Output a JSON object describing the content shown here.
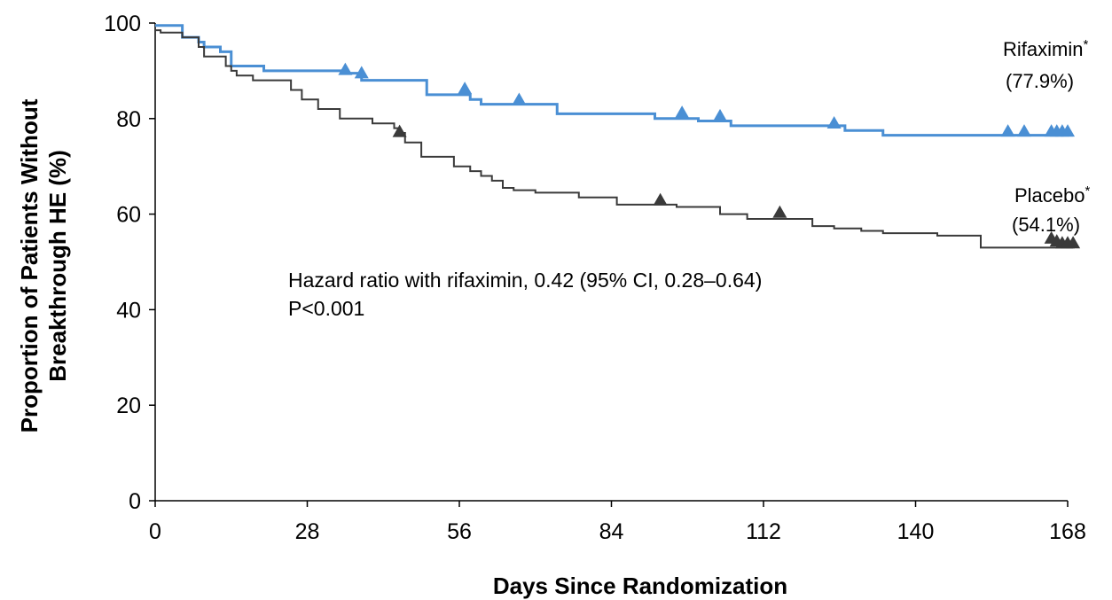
{
  "chart_data": {
    "type": "line",
    "subtype": "kaplan-meier step",
    "xlabel": "Days Since Randomization",
    "ylabel_line1": "Proportion of Patients Without",
    "ylabel_line2": "Breakthrough HE (%)",
    "xlim": [
      0,
      168
    ],
    "ylim": [
      0,
      100
    ],
    "xticks": [
      0,
      28,
      56,
      84,
      112,
      140,
      168
    ],
    "yticks": [
      0,
      20,
      40,
      60,
      80,
      100
    ],
    "grid": false,
    "annotations": {
      "hazard_line1": "Hazard ratio with rifaximin, 0.42 (95% CI, 0.28–0.64)",
      "hazard_line2": "P<0.001"
    },
    "series": [
      {
        "name": "Rifaximin",
        "name_suffix": "*",
        "final_label": "(77.9%)",
        "color": "#4a8fd4",
        "steps": [
          [
            0,
            99.5
          ],
          [
            5,
            97
          ],
          [
            8,
            96
          ],
          [
            9,
            95
          ],
          [
            12,
            94
          ],
          [
            14,
            91
          ],
          [
            20,
            90
          ],
          [
            35,
            89.5
          ],
          [
            38,
            88
          ],
          [
            50,
            85
          ],
          [
            58,
            84
          ],
          [
            60,
            83
          ],
          [
            74,
            81
          ],
          [
            92,
            80
          ],
          [
            100,
            79.5
          ],
          [
            106,
            78.5
          ],
          [
            127,
            77.5
          ],
          [
            134,
            76.5
          ],
          [
            169,
            76.5
          ]
        ],
        "censored": [
          [
            35,
            89.5
          ],
          [
            38,
            88.8
          ],
          [
            57,
            85.5
          ],
          [
            67,
            83.2
          ],
          [
            97,
            80.5
          ],
          [
            104,
            79.8
          ],
          [
            125,
            78.3
          ],
          [
            157,
            76.6
          ],
          [
            160,
            76.6
          ],
          [
            165,
            76.6
          ],
          [
            166,
            76.6
          ],
          [
            167,
            76.6
          ],
          [
            168,
            76.6
          ]
        ]
      },
      {
        "name": "Placebo",
        "name_suffix": "*",
        "final_label": "(54.1%)",
        "color": "#3a3a3a",
        "steps": [
          [
            0,
            98.5
          ],
          [
            1,
            98
          ],
          [
            5,
            97
          ],
          [
            8,
            95
          ],
          [
            9,
            93
          ],
          [
            13,
            91
          ],
          [
            14,
            90
          ],
          [
            15,
            89
          ],
          [
            18,
            88
          ],
          [
            25,
            86
          ],
          [
            27,
            84
          ],
          [
            30,
            82
          ],
          [
            34,
            80
          ],
          [
            40,
            79
          ],
          [
            44,
            78
          ],
          [
            45,
            77
          ],
          [
            46,
            75
          ],
          [
            49,
            72
          ],
          [
            55,
            70
          ],
          [
            58,
            69
          ],
          [
            60,
            68
          ],
          [
            62,
            67
          ],
          [
            64,
            65.5
          ],
          [
            66,
            65
          ],
          [
            70,
            64.5
          ],
          [
            78,
            63.5
          ],
          [
            85,
            62
          ],
          [
            96,
            61.5
          ],
          [
            104,
            60
          ],
          [
            109,
            59
          ],
          [
            121,
            57.5
          ],
          [
            125,
            57
          ],
          [
            130,
            56.5
          ],
          [
            134,
            56
          ],
          [
            144,
            55.5
          ],
          [
            152,
            53
          ],
          [
            169,
            53
          ]
        ],
        "censored": [
          [
            45,
            76.5
          ],
          [
            93,
            62.2
          ],
          [
            115,
            59.6
          ],
          [
            165,
            54.2
          ],
          [
            166,
            53.6
          ],
          [
            167,
            53.2
          ],
          [
            168,
            53.2
          ],
          [
            169,
            53.2
          ]
        ]
      }
    ]
  }
}
